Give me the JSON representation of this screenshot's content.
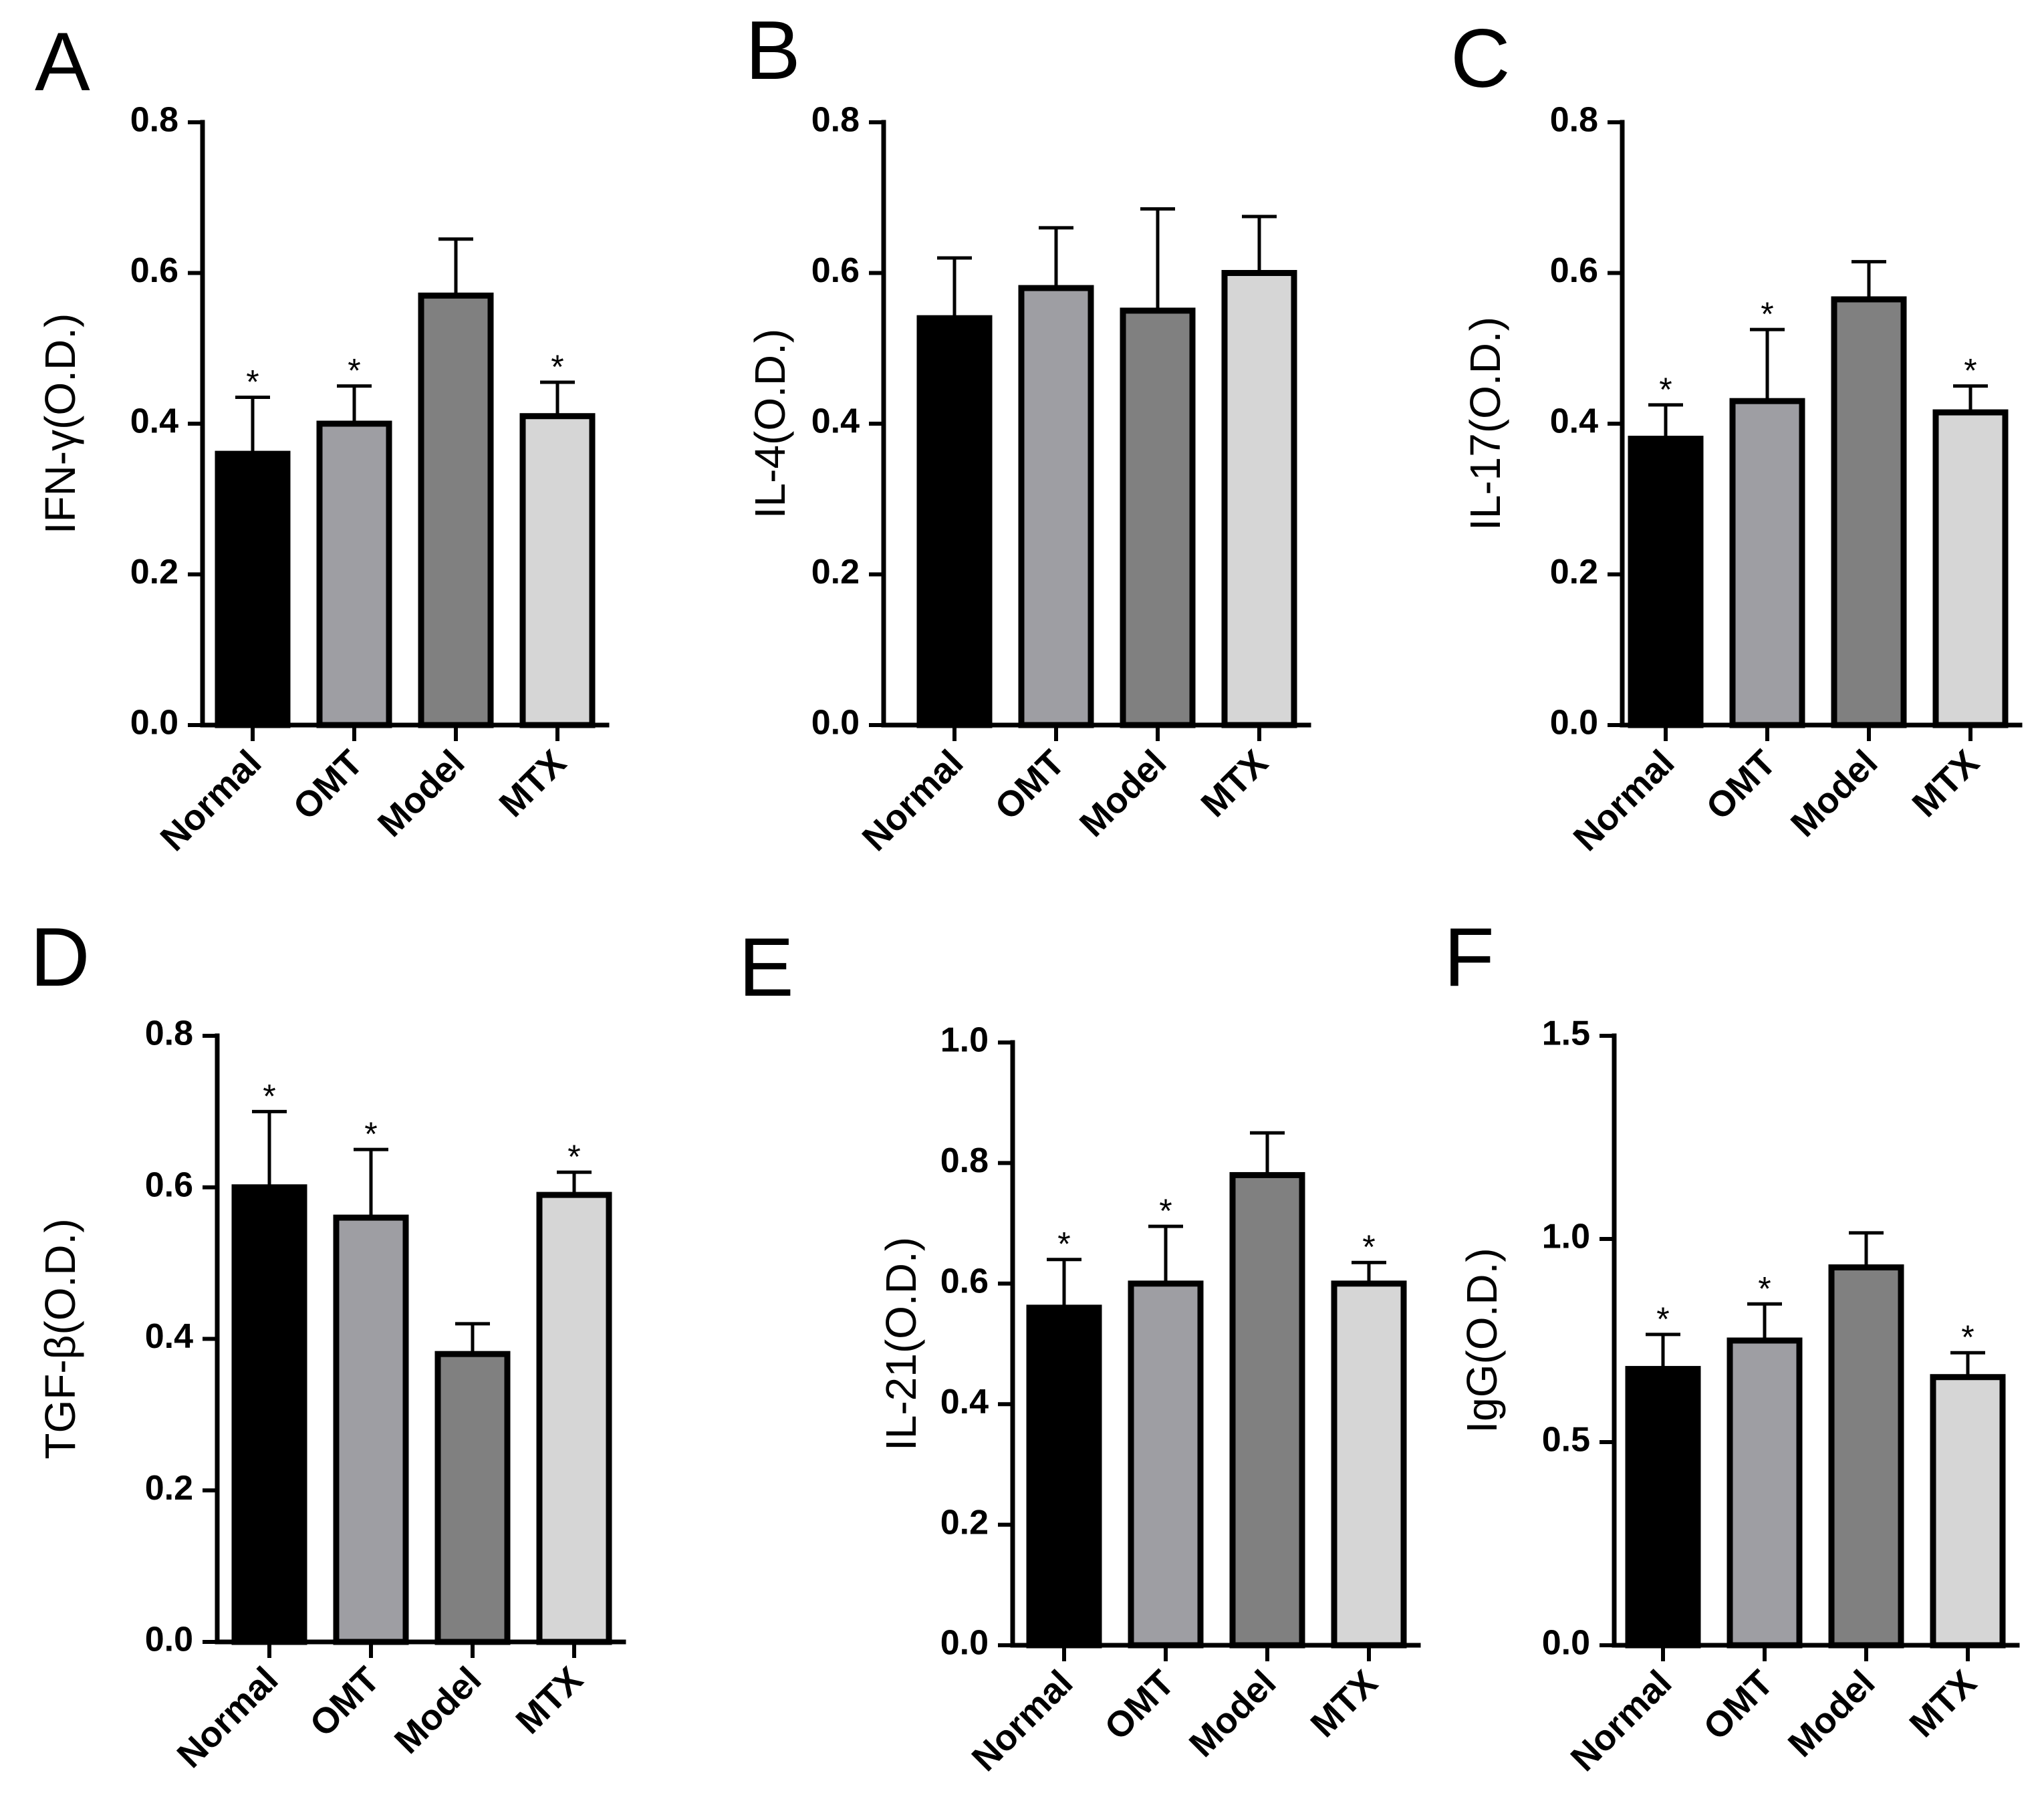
{
  "colors": {
    "Normal": "#000000",
    "OMT": "#9e9ea3",
    "Model": "#808080",
    "MTX": "#d6d6d6",
    "axis": "#000000"
  },
  "chart_data": [
    {
      "type": "bar",
      "panel": "A",
      "ylabel": "IFN-γ(O.D.)",
      "ylim": [
        0,
        0.8
      ],
      "yticks": [
        "0.0",
        "0.2",
        "0.4",
        "0.6",
        "0.8"
      ],
      "categories": [
        "Normal",
        "OMT",
        "Model",
        "MTX"
      ],
      "values": [
        0.36,
        0.4,
        0.57,
        0.41
      ],
      "errors": [
        0.075,
        0.05,
        0.075,
        0.045
      ],
      "significance": [
        "*",
        "*",
        "",
        "*"
      ]
    },
    {
      "type": "bar",
      "panel": "B",
      "ylabel": "IL-4(O.D.)",
      "ylim": [
        0,
        0.8
      ],
      "yticks": [
        "0.0",
        "0.2",
        "0.4",
        "0.6",
        "0.8"
      ],
      "categories": [
        "Normal",
        "OMT",
        "Model",
        "MTX"
      ],
      "values": [
        0.54,
        0.58,
        0.55,
        0.6
      ],
      "errors": [
        0.08,
        0.08,
        0.135,
        0.075
      ],
      "significance": [
        "",
        "",
        "",
        ""
      ]
    },
    {
      "type": "bar",
      "panel": "C",
      "ylabel": "IL-17(O.D.)",
      "ylim": [
        0,
        0.8
      ],
      "yticks": [
        "0.0",
        "0.2",
        "0.4",
        "0.6",
        "0.8"
      ],
      "categories": [
        "Normal",
        "OMT",
        "Model",
        "MTX"
      ],
      "values": [
        0.38,
        0.43,
        0.565,
        0.415
      ],
      "errors": [
        0.045,
        0.095,
        0.05,
        0.035
      ],
      "significance": [
        "*",
        "*",
        "",
        "*"
      ]
    },
    {
      "type": "bar",
      "panel": "D",
      "ylabel": "TGF-β(O.D.)",
      "ylim": [
        0,
        0.8
      ],
      "yticks": [
        "0.0",
        "0.2",
        "0.4",
        "0.6",
        "0.8"
      ],
      "categories": [
        "Normal",
        "OMT",
        "Model",
        "MTX"
      ],
      "values": [
        0.6,
        0.56,
        0.38,
        0.59
      ],
      "errors": [
        0.1,
        0.09,
        0.04,
        0.03
      ],
      "significance": [
        "*",
        "*",
        "",
        "*"
      ]
    },
    {
      "type": "bar",
      "panel": "E",
      "ylabel": "IL-21(O.D.)",
      "ylim": [
        0,
        1.0
      ],
      "yticks": [
        "0.0",
        "0.2",
        "0.4",
        "0.6",
        "0.8",
        "1.0"
      ],
      "categories": [
        "Normal",
        "OMT",
        "Model",
        "MTX"
      ],
      "values": [
        0.56,
        0.6,
        0.78,
        0.6
      ],
      "errors": [
        0.08,
        0.095,
        0.07,
        0.035
      ],
      "significance": [
        "*",
        "*",
        "",
        "*"
      ]
    },
    {
      "type": "bar",
      "panel": "F",
      "ylabel": "IgG(O.D.)",
      "ylim": [
        0,
        1.5
      ],
      "yticks": [
        "0.0",
        "0.5",
        "1.0",
        "1.5"
      ],
      "categories": [
        "Normal",
        "OMT",
        "Model",
        "MTX"
      ],
      "values": [
        0.68,
        0.75,
        0.93,
        0.66
      ],
      "errors": [
        0.085,
        0.09,
        0.085,
        0.06
      ],
      "significance": [
        "*",
        "*",
        "",
        "*"
      ]
    }
  ]
}
